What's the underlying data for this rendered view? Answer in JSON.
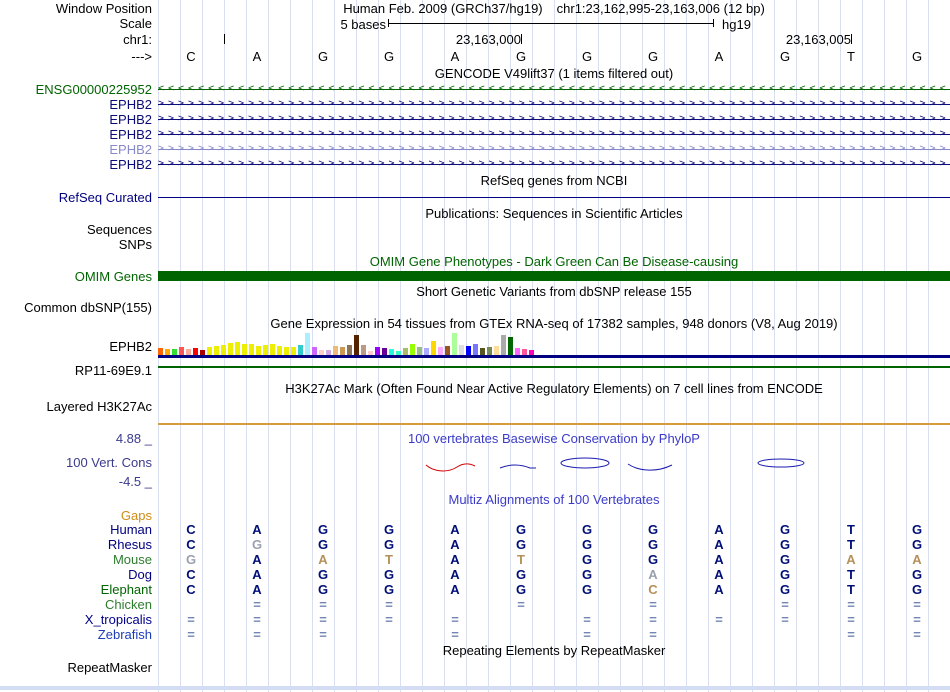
{
  "header": {
    "window_position_label": "Window Position",
    "assembly": "Human Feb. 2009 (GRCh37/hg19)",
    "range": "chr1:23,162,995-23,163,006 (12 bp)",
    "scale_label": "Scale",
    "scale_value": "5 bases",
    "genome": "hg19",
    "chrom": "chr1:",
    "strand": "--->",
    "coords": [
      "23,163,000",
      "23,163,005"
    ],
    "bases": [
      "C",
      "A",
      "G",
      "G",
      "A",
      "G",
      "G",
      "G",
      "A",
      "G",
      "T",
      "G"
    ]
  },
  "colors": {
    "gridline": "#d9dff1",
    "gene_blue": "#0c0c78",
    "gene_blue_light": "#8889c8",
    "dark_green": "#006400",
    "navy": "#000080",
    "h3k27ac_line": "#d69a3c",
    "phylop_blue": "#3b3bc8",
    "gaps_orange": "#cf8d15",
    "conservation_red": "#d40000",
    "conservation_blue": "#1b1bb0"
  },
  "tracks": {
    "gencode": {
      "title": "GENCODE V49lift37 (1 items filtered out)",
      "items": [
        {
          "label": "ENSG00000225952",
          "color": "#006400",
          "direction": "<"
        },
        {
          "label": "EPHB2",
          "color": "#0c0c78",
          "direction": ">"
        },
        {
          "label": "EPHB2",
          "color": "#0c0c78",
          "direction": ">"
        },
        {
          "label": "EPHB2",
          "color": "#0c0c78",
          "direction": ">"
        },
        {
          "label": "EPHB2",
          "color": "#8889c8",
          "direction": ">"
        },
        {
          "label": "EPHB2",
          "color": "#0c0c78",
          "direction": ">"
        }
      ]
    },
    "refseq": {
      "title": "RefSeq genes from NCBI",
      "label": "RefSeq Curated"
    },
    "publications": {
      "title": "Publications: Sequences in Scientific Articles",
      "sequences_label": "Sequences",
      "snps_label": "SNPs"
    },
    "omim": {
      "title": "OMIM Gene Phenotypes - Dark Green Can Be Disease-causing",
      "label": "OMIM Genes"
    },
    "dbsnp": {
      "title": "Short Genetic Variants from dbSNP release 155",
      "label": "Common dbSNP(155)"
    },
    "gtex": {
      "title": "Gene Expression in 54 tissues from GTEx RNA-seq of 17382 samples, 948 donors (V8, Aug 2019)",
      "label": "EPHB2",
      "bars": [
        [
          "#FF6600",
          7
        ],
        [
          "#FFAA00",
          6
        ],
        [
          "#33DD33",
          6
        ],
        [
          "#FF5555",
          8
        ],
        [
          "#FFAA99",
          6
        ],
        [
          "#FF0000",
          7
        ],
        [
          "#AA0000",
          5
        ],
        [
          "#EEEE00",
          8
        ],
        [
          "#EEEE00",
          9
        ],
        [
          "#EEEE00",
          10
        ],
        [
          "#EEEE00",
          12
        ],
        [
          "#EEEE00",
          13
        ],
        [
          "#EEEE00",
          11
        ],
        [
          "#EEEE00",
          11
        ],
        [
          "#EEEE00",
          9
        ],
        [
          "#EEEE00",
          10
        ],
        [
          "#EEEE00",
          11
        ],
        [
          "#EEEE00",
          9
        ],
        [
          "#EEEE00",
          8
        ],
        [
          "#EEEE00",
          8
        ],
        [
          "#33CCCC",
          10
        ],
        [
          "#AAEEFF",
          22
        ],
        [
          "#CC66FF",
          8
        ],
        [
          "#FFCCCC",
          5
        ],
        [
          "#CCAADD",
          5
        ],
        [
          "#EEBB77",
          9
        ],
        [
          "#CC9955",
          8
        ],
        [
          "#8B7355",
          10
        ],
        [
          "#552200",
          20
        ],
        [
          "#BB9988",
          10
        ],
        [
          "#FFCCCC",
          4
        ],
        [
          "#9900FF",
          8
        ],
        [
          "#660099",
          7
        ],
        [
          "#22FFDD",
          6
        ],
        [
          "#33FFC2",
          4
        ],
        [
          "#AABB66",
          7
        ],
        [
          "#99FF00",
          11
        ],
        [
          "#99BB88",
          8
        ],
        [
          "#AAAAFF",
          7
        ],
        [
          "#FFD700",
          14
        ],
        [
          "#FFAAFF",
          8
        ],
        [
          "#995522",
          9
        ],
        [
          "#AAFF99",
          22
        ],
        [
          "#DDDDDD",
          10
        ],
        [
          "#0000FF",
          9
        ],
        [
          "#7777FF",
          11
        ],
        [
          "#555522",
          7
        ],
        [
          "#778855",
          8
        ],
        [
          "#FFDD99",
          9
        ],
        [
          "#AAAAAA",
          20
        ],
        [
          "#006600",
          18
        ],
        [
          "#FF66FF",
          7
        ],
        [
          "#FF5599",
          6
        ],
        [
          "#FF00BB",
          5
        ]
      ]
    },
    "lincrna": {
      "label": "RP11-69E9.1"
    },
    "h3k27ac": {
      "title": "H3K27Ac Mark (Often Found Near Active Regulatory Elements) on 7 cell lines from ENCODE",
      "label": "Layered H3K27Ac"
    },
    "phylop": {
      "title": "100 vertebrates Basewise Conservation by PhyloP",
      "label": "100 Vert. Cons",
      "max_value": "4.88 _",
      "min_value": "-4.5 _"
    },
    "multiz": {
      "title": "Multiz Alignments of 100 Vertebrates",
      "gaps_label": "Gaps",
      "species": [
        {
          "name": "Human",
          "color": "#000080",
          "cells": [
            [
              "C",
              "n"
            ],
            [
              "A",
              "n"
            ],
            [
              "G",
              "n"
            ],
            [
              "G",
              "n"
            ],
            [
              "A",
              "n"
            ],
            [
              "G",
              "n"
            ],
            [
              "G",
              "n"
            ],
            [
              "G",
              "n"
            ],
            [
              "A",
              "n"
            ],
            [
              "G",
              "n"
            ],
            [
              "T",
              "n"
            ],
            [
              "G",
              "n"
            ]
          ]
        },
        {
          "name": "Rhesus",
          "color": "#000080",
          "cells": [
            [
              "C",
              "n"
            ],
            [
              "G",
              "g"
            ],
            [
              "G",
              "n"
            ],
            [
              "G",
              "n"
            ],
            [
              "A",
              "n"
            ],
            [
              "G",
              "n"
            ],
            [
              "G",
              "n"
            ],
            [
              "G",
              "n"
            ],
            [
              "A",
              "n"
            ],
            [
              "G",
              "n"
            ],
            [
              "T",
              "n"
            ],
            [
              "G",
              "n"
            ]
          ]
        },
        {
          "name": "Mouse",
          "color": "#2e7d2e",
          "cells": [
            [
              "G",
              "g"
            ],
            [
              "A",
              "n"
            ],
            [
              "A",
              "o"
            ],
            [
              "T",
              "o"
            ],
            [
              "A",
              "n"
            ],
            [
              "T",
              "o"
            ],
            [
              "G",
              "n"
            ],
            [
              "G",
              "n"
            ],
            [
              "A",
              "n"
            ],
            [
              "G",
              "n"
            ],
            [
              "A",
              "o"
            ],
            [
              "A",
              "o"
            ]
          ]
        },
        {
          "name": "Dog",
          "color": "#000080",
          "cells": [
            [
              "C",
              "n"
            ],
            [
              "A",
              "n"
            ],
            [
              "G",
              "n"
            ],
            [
              "G",
              "n"
            ],
            [
              "A",
              "n"
            ],
            [
              "G",
              "n"
            ],
            [
              "G",
              "n"
            ],
            [
              "A",
              "g"
            ],
            [
              "A",
              "n"
            ],
            [
              "G",
              "n"
            ],
            [
              "T",
              "n"
            ],
            [
              "G",
              "n"
            ]
          ]
        },
        {
          "name": "Elephant",
          "color": "#006400",
          "cells": [
            [
              "C",
              "n"
            ],
            [
              "A",
              "n"
            ],
            [
              "G",
              "n"
            ],
            [
              "G",
              "n"
            ],
            [
              "A",
              "n"
            ],
            [
              "G",
              "n"
            ],
            [
              "G",
              "n"
            ],
            [
              "C",
              "o"
            ],
            [
              "A",
              "n"
            ],
            [
              "G",
              "n"
            ],
            [
              "T",
              "n"
            ],
            [
              "G",
              "n"
            ]
          ]
        },
        {
          "name": "Chicken",
          "color": "#2e7d2e",
          "cells": [
            [
              "",
              ""
            ],
            [
              "=",
              "q"
            ],
            [
              "=",
              "q"
            ],
            [
              "=",
              "q"
            ],
            [
              "",
              ""
            ],
            [
              "=",
              "q"
            ],
            [
              "",
              ""
            ],
            [
              "=",
              "q"
            ],
            [
              "",
              ""
            ],
            [
              "=",
              "q"
            ],
            [
              "=",
              "q"
            ],
            [
              "=",
              "q"
            ]
          ]
        },
        {
          "name": "X_tropicalis",
          "color": "#00008b",
          "cells": [
            [
              "=",
              "q"
            ],
            [
              "=",
              "q"
            ],
            [
              "=",
              "q"
            ],
            [
              "=",
              "q"
            ],
            [
              "=",
              "q"
            ],
            [
              "",
              ""
            ],
            [
              "=",
              "q"
            ],
            [
              "=",
              "q"
            ],
            [
              "=",
              "q"
            ],
            [
              "=",
              "q"
            ],
            [
              "=",
              "q"
            ],
            [
              "=",
              "q"
            ]
          ]
        },
        {
          "name": "Zebrafish",
          "color": "#1c3db8",
          "cells": [
            [
              "=",
              "q"
            ],
            [
              "=",
              "q"
            ],
            [
              "=",
              "q"
            ],
            [
              "",
              ""
            ],
            [
              "=",
              "q"
            ],
            [
              "",
              ""
            ],
            [
              "=",
              "q"
            ],
            [
              "=",
              "q"
            ],
            [
              "",
              ""
            ],
            [
              "",
              ""
            ],
            [
              "=",
              "q"
            ],
            [
              "=",
              "q"
            ]
          ]
        }
      ]
    },
    "repeatmasker": {
      "title": "Repeating Elements by RepeatMasker",
      "label": "RepeatMasker"
    }
  }
}
